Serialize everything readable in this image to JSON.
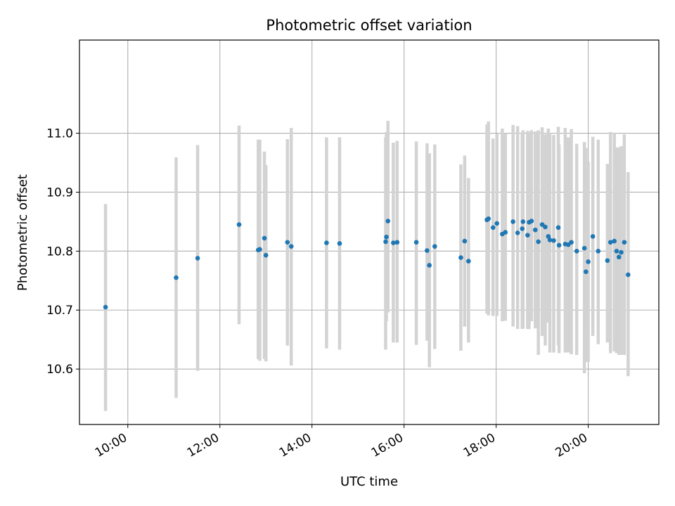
{
  "chart_data": {
    "type": "scatter",
    "title": "Photometric offset variation",
    "xlabel": "UTC time",
    "ylabel": "Photometric offset",
    "xlim": [
      "08:57",
      "21:32"
    ],
    "ylim": [
      10.506,
      11.158
    ],
    "grid": true,
    "x_ticks": [
      "10:00",
      "12:00",
      "14:00",
      "16:00",
      "18:00",
      "20:00"
    ],
    "y_ticks": [
      10.6,
      10.7,
      10.8,
      10.9,
      11.0
    ],
    "y_tick_labels": [
      "10.6",
      "10.7",
      "10.8",
      "10.9",
      "11.0"
    ],
    "colors": {
      "points": "#1f77b4",
      "error_bars": "#d3d3d3",
      "grid": "#b0b0b0",
      "axes": "#000000"
    },
    "series": [
      {
        "x": [
          "09:31",
          "11:03",
          "11:31",
          "12:25",
          "12:50",
          "12:52",
          "12:58",
          "13:00",
          "13:28",
          "13:33",
          "14:19",
          "14:36",
          "15:36",
          "15:37",
          "15:39",
          "15:46",
          "15:51",
          "16:16",
          "16:30",
          "16:33",
          "16:40",
          "17:14",
          "17:19",
          "17:24",
          "17:48",
          "17:50",
          "17:56",
          "18:01",
          "18:08",
          "18:12",
          "18:22",
          "18:28",
          "18:34",
          "18:35",
          "18:41",
          "18:43",
          "18:46",
          "18:51",
          "18:55",
          "19:00",
          "19:04",
          "19:08",
          "19:10",
          "19:15",
          "19:21",
          "19:22",
          "19:30",
          "19:34",
          "19:38",
          "19:45",
          "19:55",
          "19:57",
          "20:00",
          "20:06",
          "20:13",
          "20:25",
          "20:29",
          "20:34",
          "20:37",
          "20:40",
          "20:43",
          "20:47",
          "20:52"
        ],
        "y": [
          10.705,
          10.755,
          10.788,
          10.845,
          10.802,
          10.803,
          10.822,
          10.793,
          10.815,
          10.808,
          10.814,
          10.813,
          10.816,
          10.824,
          10.851,
          10.814,
          10.815,
          10.815,
          10.801,
          10.776,
          10.808,
          10.789,
          10.817,
          10.783,
          10.853,
          10.855,
          10.84,
          10.847,
          10.829,
          10.832,
          10.85,
          10.831,
          10.838,
          10.85,
          10.827,
          10.849,
          10.851,
          10.836,
          10.816,
          10.845,
          10.841,
          10.825,
          10.819,
          10.818,
          10.84,
          10.81,
          10.812,
          10.811,
          10.815,
          10.8,
          10.805,
          10.765,
          10.782,
          10.825,
          10.8,
          10.784,
          10.815,
          10.817,
          10.8,
          10.79,
          10.798,
          10.815,
          10.76
        ],
        "error_low": [
          10.529,
          10.551,
          10.597,
          10.676,
          10.617,
          10.614,
          10.617,
          10.613,
          10.64,
          10.606,
          10.635,
          10.633,
          10.633,
          10.681,
          10.696,
          10.645,
          10.645,
          10.641,
          10.648,
          10.603,
          10.634,
          10.631,
          10.672,
          10.645,
          10.694,
          10.691,
          10.69,
          10.69,
          10.681,
          10.682,
          10.672,
          10.668,
          10.668,
          10.669,
          10.668,
          10.668,
          10.681,
          10.669,
          10.624,
          10.656,
          10.64,
          10.679,
          10.628,
          10.628,
          10.64,
          10.627,
          10.628,
          10.628,
          10.625,
          10.624,
          10.593,
          10.612,
          10.612,
          10.656,
          10.642,
          10.645,
          10.627,
          10.63,
          10.627,
          10.624,
          10.624,
          10.624,
          10.588
        ],
        "error_high": [
          10.88,
          10.959,
          10.98,
          11.013,
          10.989,
          10.989,
          10.969,
          10.946,
          10.99,
          11.009,
          10.993,
          10.993,
          10.993,
          11.002,
          11.021,
          10.984,
          10.987,
          10.986,
          10.983,
          10.966,
          10.981,
          10.947,
          10.962,
          10.924,
          11.015,
          11.02,
          10.991,
          10.999,
          11.008,
          11.0,
          11.014,
          11.012,
          11.001,
          11.005,
          11.004,
          11.002,
          11.005,
          11.003,
          11.005,
          11.01,
          10.998,
          11.008,
          11.001,
          10.997,
          11.011,
          10.981,
          11.009,
          10.993,
          11.007,
          10.982,
          10.985,
          10.975,
          10.952,
          10.994,
          10.989,
          10.948,
          11.002,
          11.001,
          10.976,
          10.976,
          10.978,
          10.998,
          10.934
        ]
      }
    ]
  }
}
